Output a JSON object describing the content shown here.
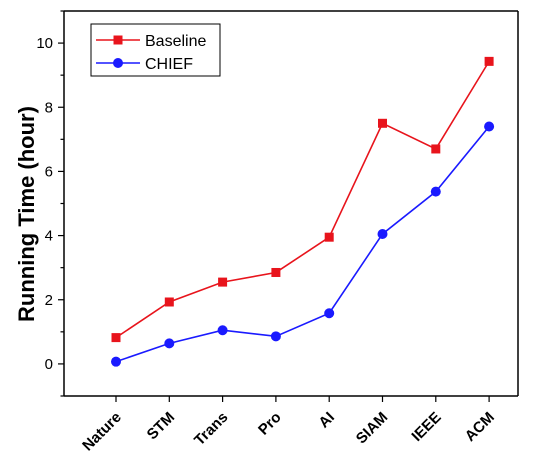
{
  "chart_data": {
    "type": "line",
    "categories": [
      "Nature",
      "STM",
      "Trans",
      "Pro",
      "AI",
      "SIAM",
      "IEEE",
      "ACM"
    ],
    "series": [
      {
        "name": "Baseline",
        "color": "#e8141c",
        "marker": "square",
        "values": [
          0.82,
          1.93,
          2.55,
          2.85,
          3.95,
          7.5,
          6.7,
          9.43
        ]
      },
      {
        "name": "CHIEF",
        "color": "#1a1aff",
        "marker": "circle",
        "values": [
          0.07,
          0.64,
          1.05,
          0.86,
          1.58,
          4.05,
          5.37,
          7.4
        ]
      }
    ],
    "title": "",
    "xlabel": "",
    "ylabel": "Running Time (hour)",
    "ylim": [
      -1,
      11
    ],
    "yticks": [
      0,
      2,
      4,
      6,
      8,
      10
    ],
    "grid": false,
    "legend_position": "top-left"
  }
}
